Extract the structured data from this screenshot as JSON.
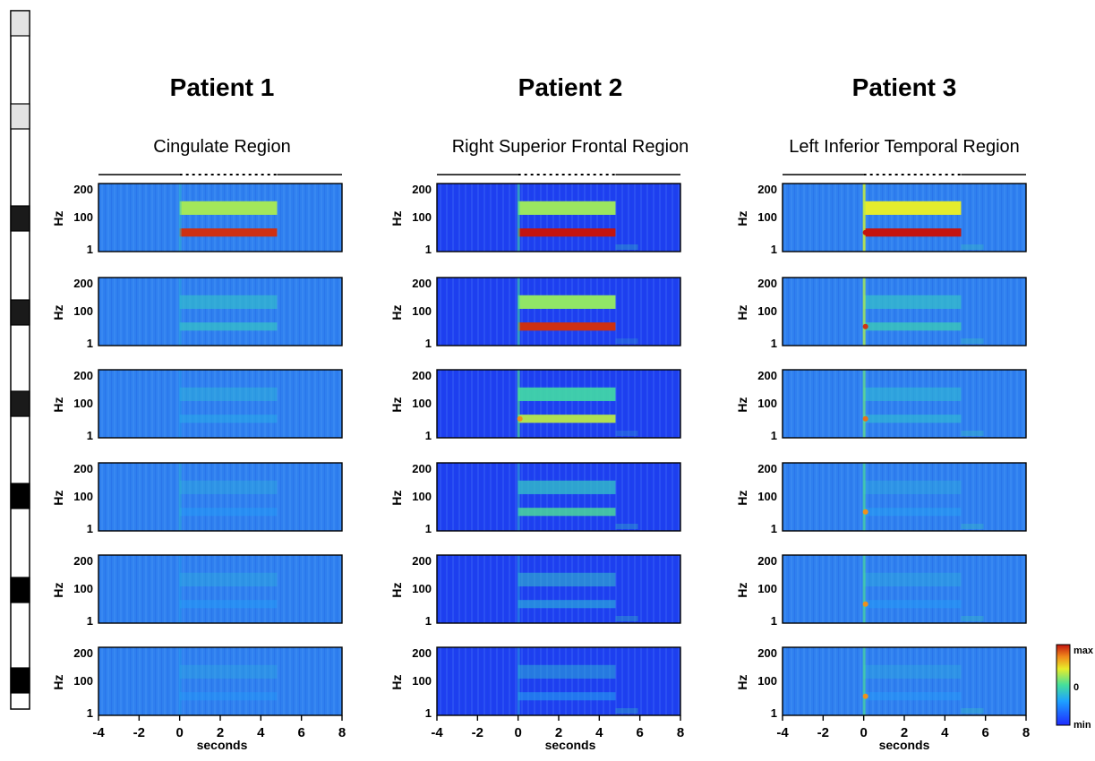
{
  "chart_data": {
    "type": "heatmap",
    "title": "",
    "xlabel": "seconds",
    "ylabel": "Hz",
    "x_ticks": [
      "-4",
      "-2",
      "0",
      "2",
      "4",
      "6",
      "8"
    ],
    "y_ticks": [
      "200",
      "100",
      "1"
    ],
    "xlim": [
      -4,
      8
    ],
    "stim_window": [
      0,
      4.8
    ],
    "colorbar": {
      "max_label": "max",
      "mid_label": "0",
      "min_label": "min"
    },
    "colors": {
      "low": "#1f2bff",
      "mid": "#45e09b",
      "high": "#e63a1d"
    },
    "panels": [
      {
        "patient": "Patient 1",
        "region": "Cingulate Region",
        "rows": [
          {
            "intensity": 0.95,
            "low_band": 1.0,
            "high_band": 0.55,
            "onset_spike": 0.3,
            "offset_tail": 0.0
          },
          {
            "intensity": 0.35,
            "low_band": 0.5,
            "high_band": 0.2,
            "onset_spike": 0.2,
            "offset_tail": 0.0
          },
          {
            "intensity": 0.18,
            "low_band": 0.4,
            "high_band": 0.1,
            "onset_spike": 0.1,
            "offset_tail": 0.0
          },
          {
            "intensity": 0.08,
            "low_band": 0.2,
            "high_band": 0.05,
            "onset_spike": 0.25,
            "offset_tail": 0.0
          },
          {
            "intensity": 0.08,
            "low_band": 0.2,
            "high_band": 0.05,
            "onset_spike": 0.1,
            "offset_tail": 0.0
          },
          {
            "intensity": 0.05,
            "low_band": 0.2,
            "high_band": 0.05,
            "onset_spike": 0.1,
            "offset_tail": 0.0
          }
        ]
      },
      {
        "patient": "Patient 2",
        "region": "Right Superior Frontal Region",
        "rows": [
          {
            "intensity": 1.0,
            "low_band": 1.0,
            "high_band": 0.5,
            "onset_spike": 0.5,
            "offset_tail": 0.3
          },
          {
            "intensity": 0.95,
            "low_band": 1.0,
            "high_band": 0.5,
            "onset_spike": 0.5,
            "offset_tail": 0.2
          },
          {
            "intensity": 0.65,
            "low_band": 0.75,
            "high_band": 0.35,
            "onset_spike": 0.6,
            "offset_tail": 0.2
          },
          {
            "intensity": 0.5,
            "low_band": 0.6,
            "high_band": 0.15,
            "onset_spike": 0.3,
            "offset_tail": 0.3
          },
          {
            "intensity": 0.28,
            "low_band": 0.4,
            "high_band": 0.25,
            "onset_spike": 0.2,
            "offset_tail": 0.3
          },
          {
            "intensity": 0.2,
            "low_band": 0.25,
            "high_band": 0.2,
            "onset_spike": 0.2,
            "offset_tail": 0.3
          }
        ]
      },
      {
        "patient": "Patient 3",
        "region": "Left Inferior Temporal Region",
        "rows": [
          {
            "intensity": 1.0,
            "low_band": 1.0,
            "high_band": 0.7,
            "onset_spike": 1.0,
            "offset_tail": 0.3
          },
          {
            "intensity": 0.4,
            "low_band": 0.55,
            "high_band": 0.2,
            "onset_spike": 0.9,
            "offset_tail": 0.3
          },
          {
            "intensity": 0.3,
            "low_band": 0.45,
            "high_band": 0.1,
            "onset_spike": 0.7,
            "offset_tail": 0.3
          },
          {
            "intensity": 0.1,
            "low_band": 0.3,
            "high_band": 0.05,
            "onset_spike": 0.6,
            "offset_tail": 0.3
          },
          {
            "intensity": 0.08,
            "low_band": 0.2,
            "high_band": 0.05,
            "onset_spike": 0.6,
            "offset_tail": 0.3
          },
          {
            "intensity": 0.06,
            "low_band": 0.2,
            "high_band": 0.05,
            "onset_spike": 0.6,
            "offset_tail": 0.3
          }
        ]
      }
    ]
  },
  "electrode_strip": {
    "contacts": [
      "light",
      "light",
      "dark",
      "dark",
      "dark",
      "dark",
      "dark",
      "dark"
    ]
  }
}
